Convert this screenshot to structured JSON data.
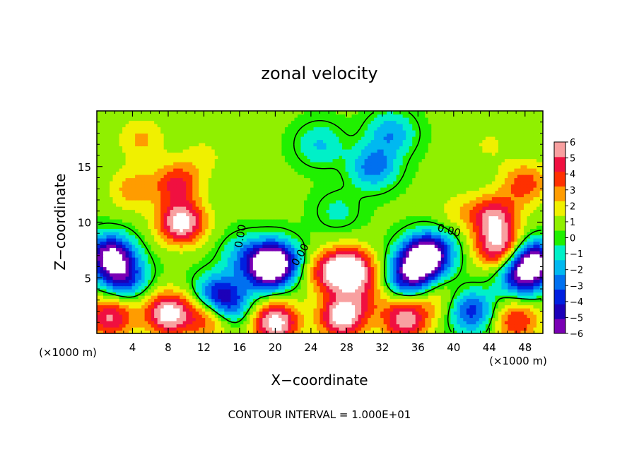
{
  "chart_data": {
    "type": "heatmap",
    "title": "zonal velocity",
    "xlabel": "X−coordinate",
    "ylabel": "Z−coordinate",
    "x_units": "(×1000 m)",
    "y_units": "(×1000 m)",
    "xlim": [
      0,
      50
    ],
    "ylim": [
      0,
      20
    ],
    "x_ticks": [
      4,
      8,
      12,
      16,
      20,
      24,
      28,
      32,
      36,
      40,
      44,
      48
    ],
    "y_ticks": [
      5,
      10,
      15
    ],
    "colorbar": {
      "ticks": [
        6,
        5,
        4,
        3,
        2,
        1,
        0,
        -1,
        -2,
        -3,
        -4,
        -5,
        -6
      ],
      "tick_labels": [
        "6",
        "5",
        "4",
        "3",
        "2",
        "1",
        "0",
        "−1",
        "−2",
        "−3",
        "−4",
        "−5",
        "−6"
      ],
      "range": [
        -6,
        6
      ],
      "colors": [
        "#7a00b4",
        "#1c00b8",
        "#0020e0",
        "#0070f0",
        "#00b8f0",
        "#00f0c8",
        "#20f000",
        "#90f000",
        "#f0f000",
        "#ff9c00",
        "#ff3000",
        "#f01040",
        "#f8a0a0"
      ]
    },
    "contour_labels": [
      "0.00",
      "0.00",
      "0.00"
    ],
    "contour_interval_text": "CONTOUR INTERVAL = 1.000E+01",
    "features": [
      {
        "x": 9.5,
        "z": 10.0,
        "value": 6.5
      },
      {
        "x": 9.0,
        "z": 13.5,
        "value": 4.0
      },
      {
        "x": 4.0,
        "z": 13.0,
        "value": 2.5
      },
      {
        "x": 1.5,
        "z": 7.0,
        "value": -6.5
      },
      {
        "x": 3.0,
        "z": 5.0,
        "value": -4.0
      },
      {
        "x": 1.5,
        "z": 1.5,
        "value": 5.0
      },
      {
        "x": 8.0,
        "z": 1.8,
        "value": 6.5
      },
      {
        "x": 12.5,
        "z": 1.5,
        "value": 4.0
      },
      {
        "x": 13.5,
        "z": 3.5,
        "value": -4.0
      },
      {
        "x": 15.0,
        "z": 2.5,
        "value": -2.5
      },
      {
        "x": 20.0,
        "z": 6.5,
        "value": -6.5
      },
      {
        "x": 19.0,
        "z": 5.5,
        "value": -3.5
      },
      {
        "x": 28.5,
        "z": 5.8,
        "value": 6.5
      },
      {
        "x": 26.0,
        "z": 5.5,
        "value": 4.0
      },
      {
        "x": 36.5,
        "z": 6.8,
        "value": -6.5
      },
      {
        "x": 35.0,
        "z": 5.0,
        "value": -4.5
      },
      {
        "x": 38.0,
        "z": 7.5,
        "value": -2.5
      },
      {
        "x": 44.5,
        "z": 10.5,
        "value": 5.0
      },
      {
        "x": 45.0,
        "z": 7.8,
        "value": 5.5
      },
      {
        "x": 48.0,
        "z": 13.5,
        "value": 3.5
      },
      {
        "x": 49.0,
        "z": 6.5,
        "value": -6.5
      },
      {
        "x": 47.5,
        "z": 5.0,
        "value": -4.0
      },
      {
        "x": 20.0,
        "z": 1.0,
        "value": 6.5
      },
      {
        "x": 27.5,
        "z": 1.5,
        "value": 6.5
      },
      {
        "x": 34.5,
        "z": 1.3,
        "value": 5.5
      },
      {
        "x": 42.0,
        "z": 2.0,
        "value": -4.0
      },
      {
        "x": 47.0,
        "z": 1.2,
        "value": 4.0
      },
      {
        "x": 25.0,
        "z": 17.0,
        "value": -1.8
      },
      {
        "x": 31.0,
        "z": 15.0,
        "value": -3.2
      },
      {
        "x": 33.0,
        "z": 18.0,
        "value": -2.5
      },
      {
        "x": 27.0,
        "z": 11.0,
        "value": -1.0
      },
      {
        "x": 5.0,
        "z": 17.5,
        "value": 2.2
      },
      {
        "x": 12.0,
        "z": 16.0,
        "value": 1.3
      },
      {
        "x": 44.0,
        "z": 17.0,
        "value": 1.2
      },
      {
        "x": 30.0,
        "z": 3.5,
        "value": 2.5
      },
      {
        "x": 38.0,
        "z": 3.0,
        "value": 2.0
      },
      {
        "x": 16.5,
        "z": 7.0,
        "value": -2.0
      },
      {
        "x": 40.5,
        "z": 11.0,
        "value": 1.5
      }
    ]
  }
}
